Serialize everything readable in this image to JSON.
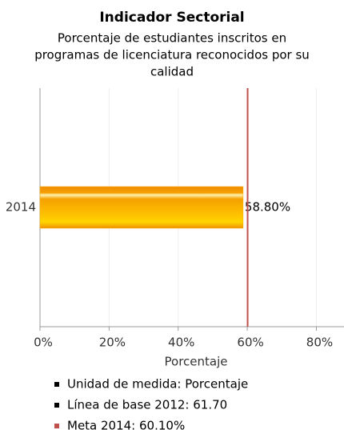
{
  "chart_data": {
    "type": "bar",
    "orientation": "horizontal",
    "title": "Indicador Sectorial",
    "subtitle": [
      "Porcentaje de estudiantes inscritos en",
      "programas de licenciatura reconocidos por su",
      "calidad"
    ],
    "categories": [
      "2014"
    ],
    "values": [
      58.8
    ],
    "value_labels": [
      "58.80%"
    ],
    "color": "#f7a800",
    "xlabel": "Porcentaje",
    "xlim": [
      0,
      88
    ],
    "xticks": [
      {
        "value": 0,
        "label": "0%"
      },
      {
        "value": 20,
        "label": "20%"
      },
      {
        "value": 40,
        "label": "40%"
      },
      {
        "value": 60,
        "label": "60%"
      },
      {
        "value": 80,
        "label": "80%"
      }
    ],
    "grid": true,
    "reference_line": {
      "value": 60.1,
      "color": "#c0504d"
    },
    "legend": [
      {
        "text": "Unidad de medida: Porcentaje",
        "color": "#000000"
      },
      {
        "text": "Línea de base 2012: 61.70",
        "color": "#000000"
      },
      {
        "text": "Meta 2014: 60.10%",
        "color": "#c0504d"
      }
    ]
  }
}
